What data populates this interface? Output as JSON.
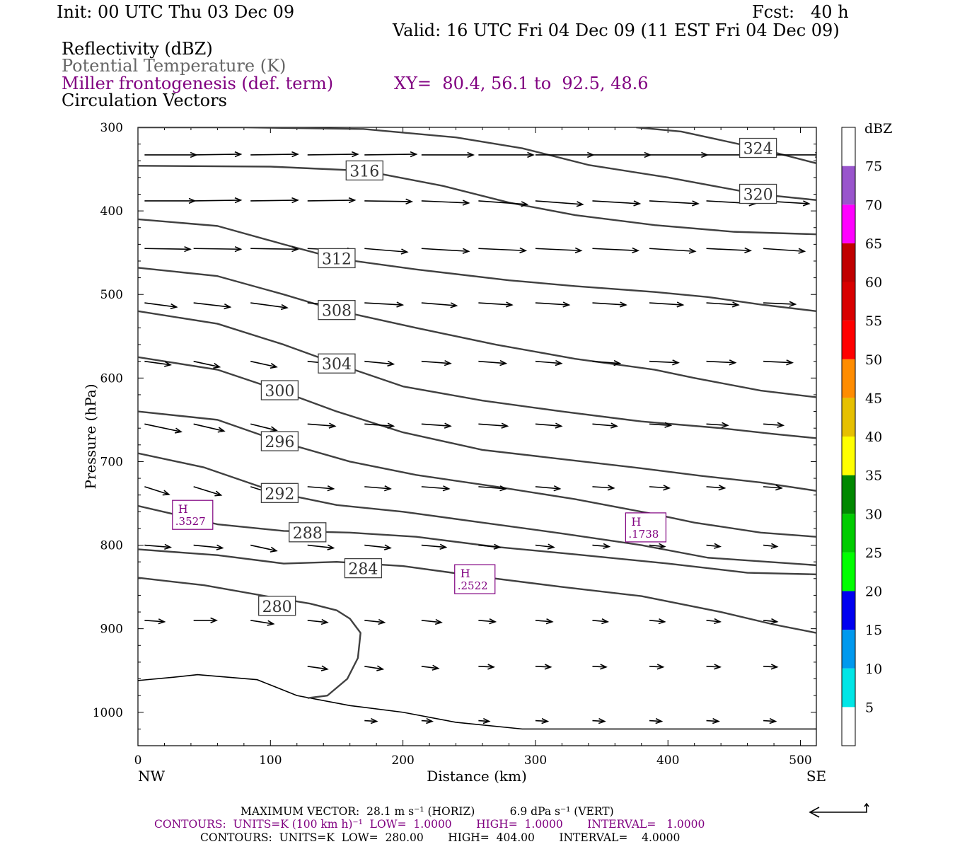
{
  "header": {
    "init": "Init: 00 UTC Thu 03 Dec 09",
    "fcst": "Fcst:   40 h",
    "valid": "Valid: 16 UTC Fri 04 Dec 09 (11 EST Fri 04 Dec 09)",
    "field1": "Reflectivity (dBZ)",
    "field2": "Potential Temperature (K)",
    "field3": "Miller frontogenesis (def. term)",
    "xy": "XY=  80.4, 56.1 to  92.5, 48.6",
    "field4": "Circulation Vectors"
  },
  "footer": {
    "maxvec": "MAXIMUM VECTOR:  28.1 m s⁻¹ (HORIZ)          6.9 dPa s⁻¹ (VERT)",
    "contours1": "CONTOURS:  UNITS=K (100 km h)⁻¹  LOW=  1.0000       HIGH=  1.0000       INTERVAL=   1.0000",
    "contours2": "CONTOURS:  UNITS=K  LOW=  280.00       HIGH=  404.00       INTERVAL=    4.0000"
  },
  "colors": {
    "theta": "#404040",
    "frontogenesis": "#800080",
    "dbz_scale": [
      "#ffffff",
      "#00e6e6",
      "#0099ee",
      "#0000f0",
      "#00ff00",
      "#00cc00",
      "#008800",
      "#ffff00",
      "#e6c000",
      "#ff8c00",
      "#ff0000",
      "#d80000",
      "#c00000",
      "#ff00ff",
      "#9955cc",
      "#ffffff"
    ]
  },
  "chart_data": {
    "type": "cross-section",
    "xlabel": "Distance (km)",
    "ylabel": "Pressure (hPa)",
    "xlim": [
      0,
      512
    ],
    "ylim": [
      1040,
      300
    ],
    "x_ticks": [
      0,
      100,
      200,
      300,
      400,
      500
    ],
    "y_ticks": [
      300,
      400,
      500,
      600,
      700,
      800,
      900,
      1000
    ],
    "left_end_label": "NW",
    "right_end_label": "SE",
    "colorbar": {
      "unit": "dBZ",
      "levels": [
        5,
        10,
        15,
        20,
        25,
        30,
        35,
        40,
        45,
        50,
        55,
        60,
        65,
        70,
        75
      ]
    },
    "theta_contours": [
      {
        "level": 280,
        "label": "280",
        "label_at": [
          105,
          873
        ],
        "points": [
          [
            0,
            839
          ],
          [
            50,
            848
          ],
          [
            100,
            862
          ],
          [
            130,
            870
          ],
          [
            150,
            878
          ],
          [
            160,
            888
          ],
          [
            168,
            905
          ],
          [
            166,
            935
          ],
          [
            158,
            960
          ],
          [
            143,
            980
          ],
          [
            128,
            983
          ]
        ]
      },
      {
        "level": 284,
        "label": "284",
        "label_at": [
          170,
          828
        ],
        "points": [
          [
            0,
            805
          ],
          [
            60,
            812
          ],
          [
            110,
            822
          ],
          [
            150,
            820
          ],
          [
            200,
            825
          ],
          [
            260,
            838
          ],
          [
            320,
            850
          ],
          [
            380,
            861
          ],
          [
            440,
            880
          ],
          [
            480,
            895
          ],
          [
            512,
            905
          ]
        ]
      },
      {
        "level": 288,
        "label": "288",
        "label_at": [
          128,
          785
        ],
        "points": [
          [
            0,
            753
          ],
          [
            60,
            775
          ],
          [
            110,
            783
          ],
          [
            160,
            785
          ],
          [
            210,
            790
          ],
          [
            270,
            802
          ],
          [
            330,
            811
          ],
          [
            400,
            822
          ],
          [
            460,
            833
          ],
          [
            512,
            835
          ]
        ]
      },
      {
        "level": 292,
        "label": "292",
        "label_at": [
          107,
          738
        ],
        "points": [
          [
            0,
            690
          ],
          [
            50,
            707
          ],
          [
            107,
            738
          ],
          [
            150,
            752
          ],
          [
            200,
            760
          ],
          [
            260,
            773
          ],
          [
            320,
            786
          ],
          [
            380,
            800
          ],
          [
            430,
            815
          ],
          [
            512,
            824
          ]
        ]
      },
      {
        "level": 296,
        "label": "296",
        "label_at": [
          107,
          676
        ],
        "points": [
          [
            0,
            640
          ],
          [
            60,
            650
          ],
          [
            107,
            676
          ],
          [
            160,
            700
          ],
          [
            210,
            716
          ],
          [
            270,
            730
          ],
          [
            330,
            745
          ],
          [
            390,
            763
          ],
          [
            420,
            773
          ],
          [
            470,
            785
          ],
          [
            512,
            790
          ]
        ]
      },
      {
        "level": 300,
        "label": "300",
        "label_at": [
          107,
          615
        ],
        "points": [
          [
            0,
            575
          ],
          [
            60,
            590
          ],
          [
            107,
            615
          ],
          [
            150,
            640
          ],
          [
            200,
            665
          ],
          [
            260,
            686
          ],
          [
            320,
            697
          ],
          [
            380,
            708
          ],
          [
            425,
            717
          ],
          [
            470,
            725
          ],
          [
            512,
            735
          ]
        ]
      },
      {
        "level": 304,
        "label": "304",
        "label_at": [
          150,
          583
        ],
        "points": [
          [
            0,
            520
          ],
          [
            60,
            535
          ],
          [
            110,
            560
          ],
          [
            150,
            583
          ],
          [
            200,
            610
          ],
          [
            260,
            627
          ],
          [
            320,
            640
          ],
          [
            380,
            652
          ],
          [
            440,
            660
          ],
          [
            480,
            667
          ],
          [
            512,
            672
          ]
        ]
      },
      {
        "level": 308,
        "label": "308",
        "label_at": [
          150,
          519
        ],
        "points": [
          [
            0,
            468
          ],
          [
            60,
            478
          ],
          [
            110,
            500
          ],
          [
            150,
            519
          ],
          [
            210,
            540
          ],
          [
            270,
            560
          ],
          [
            330,
            577
          ],
          [
            390,
            590
          ],
          [
            420,
            600
          ],
          [
            470,
            615
          ],
          [
            512,
            623
          ]
        ]
      },
      {
        "level": 312,
        "label": "312",
        "label_at": [
          150,
          457
        ],
        "points": [
          [
            0,
            410
          ],
          [
            60,
            418
          ],
          [
            110,
            440
          ],
          [
            150,
            457
          ],
          [
            210,
            470
          ],
          [
            280,
            483
          ],
          [
            330,
            490
          ],
          [
            390,
            497
          ],
          [
            430,
            503
          ],
          [
            470,
            512
          ],
          [
            512,
            520
          ]
        ]
      },
      {
        "level": 316,
        "label": "316",
        "label_at": [
          171,
          352
        ],
        "points": [
          [
            0,
            346
          ],
          [
            100,
            347
          ],
          [
            171,
            352
          ],
          [
            230,
            370
          ],
          [
            280,
            390
          ],
          [
            330,
            405
          ],
          [
            390,
            417
          ],
          [
            450,
            425
          ],
          [
            512,
            428
          ]
        ]
      },
      {
        "level": 320,
        "label": "320",
        "label_at": [
          468,
          380
        ],
        "points": [
          [
            0,
            300
          ],
          [
            80,
            300
          ],
          [
            170,
            302
          ],
          [
            240,
            312
          ],
          [
            290,
            325
          ],
          [
            340,
            345
          ],
          [
            400,
            360
          ],
          [
            468,
            380
          ],
          [
            512,
            387
          ]
        ]
      },
      {
        "level": 324,
        "label": "324",
        "label_at": [
          468,
          325
        ],
        "points": [
          [
            376,
            300
          ],
          [
            410,
            305
          ],
          [
            468,
            325
          ],
          [
            512,
            343
          ]
        ]
      }
    ],
    "frontogenesis_maxima": [
      {
        "label": "H",
        "value": ".3527",
        "x": 41,
        "p": 765
      },
      {
        "label": "H",
        "value": ".1738",
        "x": 383,
        "p": 780
      },
      {
        "label": "H",
        "value": ".2522",
        "x": 254,
        "p": 842
      }
    ],
    "surface_boundary": [
      [
        0,
        962
      ],
      [
        27,
        958
      ],
      [
        45,
        955
      ],
      [
        90,
        961
      ],
      [
        120,
        980
      ],
      [
        160,
        992
      ],
      [
        200,
        1000
      ],
      [
        240,
        1012
      ],
      [
        290,
        1020
      ],
      [
        512,
        1020
      ]
    ],
    "vector_rows": [
      {
        "p": 333,
        "starts": [
          5,
          42,
          85,
          128,
          171,
          214,
          257,
          300,
          343,
          386,
          429,
          472
        ],
        "u": [
          34,
          31,
          31,
          33,
          34,
          34,
          36,
          38,
          38,
          38,
          38,
          38
        ],
        "dp": [
          0,
          -1,
          -1,
          -1,
          -1,
          0,
          0,
          0,
          0,
          0,
          0,
          0
        ]
      },
      {
        "p": 388,
        "starts": [
          5,
          42,
          85,
          128,
          171,
          214,
          257,
          300,
          343,
          386,
          429,
          472
        ],
        "u": [
          33,
          31,
          31,
          31,
          31,
          31,
          32,
          31,
          31,
          32,
          32,
          30
        ],
        "dp": [
          0,
          -1,
          -1,
          -1,
          1,
          3,
          5,
          5,
          4,
          4,
          4,
          4
        ]
      },
      {
        "p": 445,
        "starts": [
          5,
          42,
          85,
          128,
          171,
          214,
          257,
          300,
          343,
          386,
          429,
          472
        ],
        "u": [
          30,
          31,
          31,
          30,
          28,
          31,
          31,
          30,
          30,
          30,
          29,
          27
        ],
        "dp": [
          1,
          1,
          1,
          3,
          5,
          4,
          3,
          3,
          3,
          4,
          3,
          4
        ]
      },
      {
        "p": 510,
        "starts": [
          5,
          42,
          85,
          128,
          171,
          214,
          257,
          300,
          343,
          386,
          429,
          472
        ],
        "u": [
          21,
          24,
          24,
          22,
          25,
          23,
          22,
          22,
          22,
          22,
          21,
          21
        ],
        "dp": [
          6,
          6,
          7,
          4,
          3,
          4,
          3,
          3,
          3,
          3,
          3,
          2
        ]
      },
      {
        "p": 580,
        "starts": [
          5,
          42,
          85,
          128,
          171,
          214,
          257,
          300,
          343,
          386,
          429,
          472
        ],
        "u": [
          17,
          17,
          17,
          18,
          19,
          19,
          18,
          17,
          18,
          19,
          19,
          19
        ],
        "dp": [
          5,
          8,
          8,
          4,
          4,
          3,
          3,
          3,
          3,
          2,
          2,
          2
        ]
      },
      {
        "p": 655,
        "starts": [
          5,
          42,
          85,
          128,
          171,
          214,
          257,
          300,
          343,
          386,
          429,
          472
        ],
        "u": [
          24,
          20,
          17,
          18,
          19,
          19,
          19,
          17,
          16,
          14,
          14,
          13
        ],
        "dp": [
          11,
          10,
          9,
          3,
          3,
          3,
          3,
          3,
          3,
          2,
          2,
          2
        ]
      },
      {
        "p": 730,
        "starts": [
          5,
          42,
          85,
          128,
          171,
          214,
          257,
          300,
          343,
          386,
          429,
          472
        ],
        "u": [
          16,
          18,
          19,
          17,
          17,
          18,
          18,
          16,
          14,
          13,
          12,
          12
        ],
        "dp": [
          11,
          12,
          13,
          3,
          3,
          3,
          3,
          3,
          2,
          2,
          2,
          2
        ]
      },
      {
        "p": 800,
        "starts": [
          5,
          42,
          85,
          128,
          171,
          214,
          257,
          300,
          343,
          386,
          429,
          472
        ],
        "u": [
          17,
          19,
          17,
          17,
          17,
          16,
          14,
          12,
          11,
          10,
          9,
          9
        ],
        "dp": [
          3,
          4,
          8,
          4,
          4,
          3,
          3,
          3,
          2,
          2,
          2,
          2
        ]
      },
      {
        "p": 890,
        "starts": [
          5,
          42,
          85,
          128,
          171,
          214,
          257,
          300,
          343,
          386,
          429,
          472
        ],
        "u": [
          13,
          15,
          15,
          13,
          13,
          13,
          11,
          11,
          10,
          10,
          9,
          9
        ],
        "dp": [
          2,
          0,
          5,
          3,
          3,
          3,
          2,
          2,
          2,
          2,
          2,
          2
        ]
      },
      {
        "p": 945,
        "starts": [
          128,
          171,
          214,
          257,
          300,
          343,
          386,
          429,
          472
        ],
        "u": [
          13,
          12,
          11,
          10,
          10,
          9,
          9,
          9,
          9
        ],
        "dp": [
          4,
          4,
          3,
          1,
          1,
          1,
          1,
          1,
          1
        ]
      },
      {
        "p": 1010,
        "starts": [
          171,
          214,
          257,
          300,
          343,
          386,
          429,
          472
        ],
        "u": [
          8,
          7,
          7,
          8,
          8,
          8,
          8,
          8
        ],
        "dp": [
          1,
          1,
          1,
          1,
          1,
          1,
          1,
          1
        ]
      }
    ]
  }
}
